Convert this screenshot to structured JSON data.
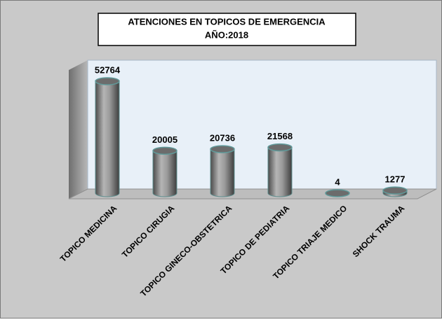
{
  "chart_data": {
    "type": "bar",
    "title": "ATENCIONES EN TOPICOS DE EMERGENCIA",
    "subtitle": "AÑO:2018",
    "categories": [
      "TOPICO MEDICINA",
      "TOPICO CIRUGIA",
      "TOPICO GINECO-OBSTETRICA",
      "TOPICO DE PEDIATRIA",
      "TOPICO TRIAJE MEDICO",
      "SHOCK TRAUMA"
    ],
    "values": [
      52764,
      20005,
      20736,
      21568,
      4,
      1277
    ],
    "color": "#8c8c8c"
  }
}
